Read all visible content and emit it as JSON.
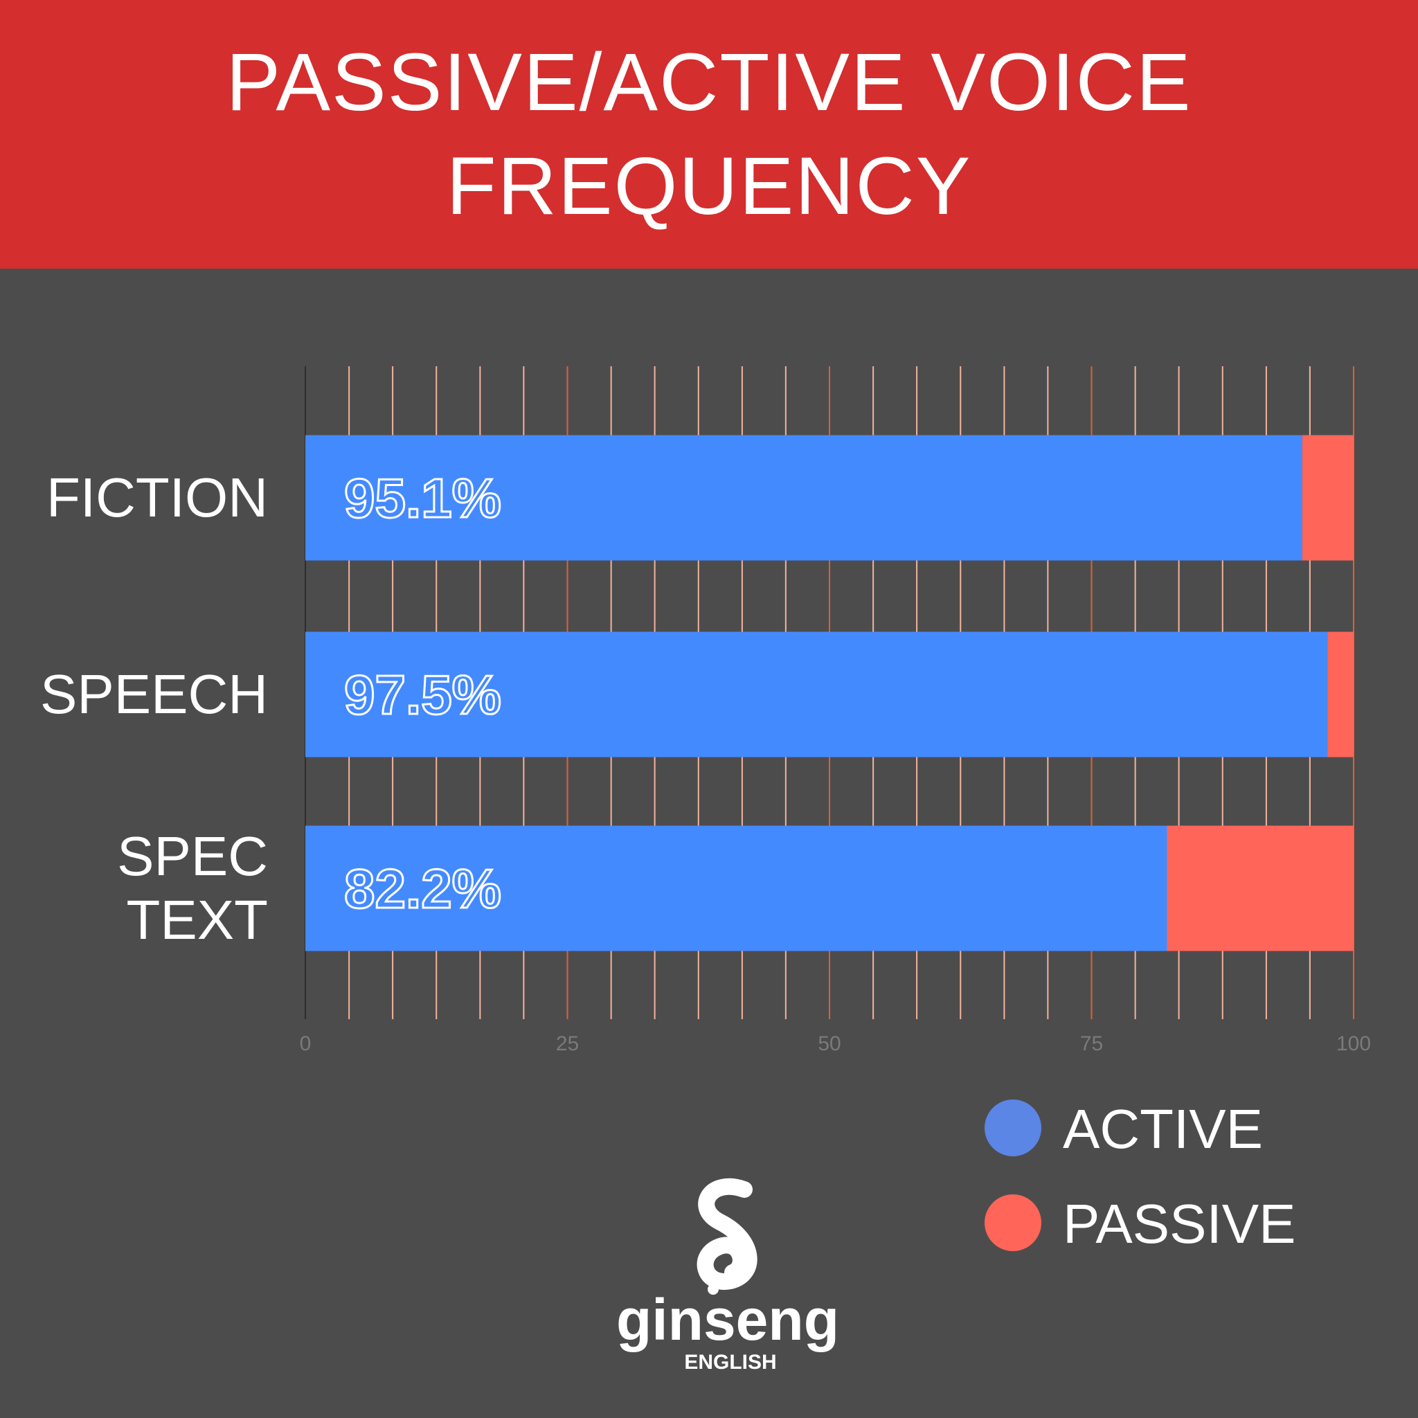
{
  "chart_data": {
    "type": "stacked_bar_horizontal",
    "title": "PASSIVE/ACTIVE VOICE FREQUENCY",
    "categories": [
      "FICTION",
      "SPEECH",
      "SPEC\nTEXT"
    ],
    "series": [
      {
        "name": "ACTIVE",
        "color": "#448aff",
        "legend_color": "#5b86e5",
        "values": [
          95.1,
          97.5,
          82.2
        ],
        "value_labels": [
          "95.1%",
          "97.5%",
          "82.2%"
        ]
      },
      {
        "name": "PASSIVE",
        "color": "#ff6659",
        "legend_color": "#ff6659",
        "values": [
          4.9,
          2.5,
          17.8
        ]
      }
    ],
    "xlim": [
      0,
      100
    ],
    "xticks": [
      0,
      25,
      50,
      75,
      100
    ],
    "minor_xticks": [
      4.17,
      8.33,
      12.5,
      16.67,
      20.83,
      29.17,
      33.33,
      37.5,
      41.67,
      45.83,
      54.17,
      58.33,
      62.5,
      66.67,
      70.83,
      79.17,
      83.33,
      87.5,
      91.67,
      95.83
    ],
    "grid": true,
    "legend": "bottom-right"
  },
  "logo": {
    "name": "ginseng",
    "sub": "ENGLISH"
  }
}
